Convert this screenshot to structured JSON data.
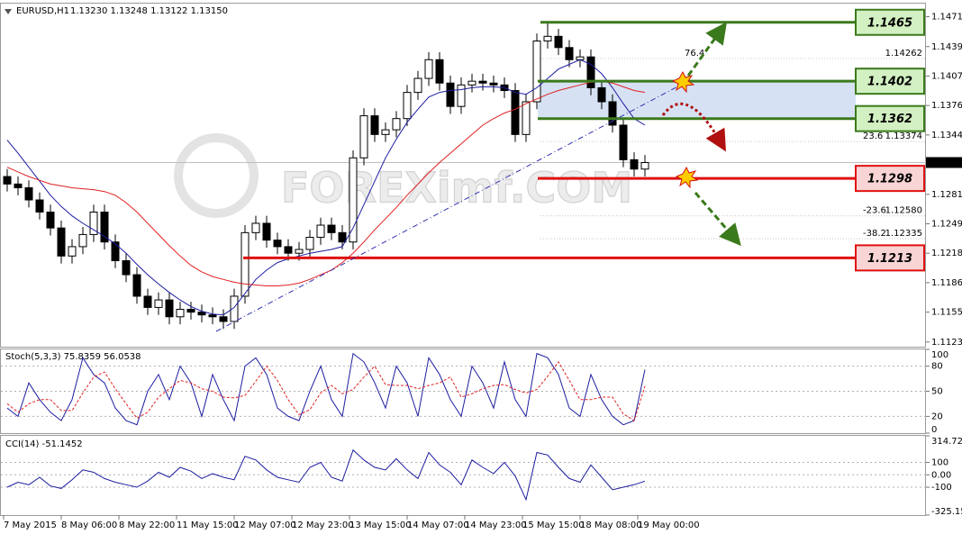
{
  "chart_data": [
    {
      "type": "candlestick",
      "title": "EURUSD,H1",
      "subtitle": "1.13230 1.13248 1.13122 1.13150",
      "watermark": "FOREXimf.COM",
      "x": [
        1,
        4,
        7,
        10,
        13,
        16,
        19,
        22,
        25,
        28,
        31,
        34,
        37,
        40,
        43,
        46,
        49,
        52,
        55,
        58,
        61,
        64,
        67,
        70,
        73,
        76,
        79,
        82,
        85,
        88,
        91,
        94,
        97,
        100,
        103,
        106,
        109,
        112,
        115,
        118,
        121,
        124,
        127,
        130,
        133,
        136,
        139,
        142,
        145,
        148,
        151,
        154,
        157,
        160,
        163,
        166,
        169,
        172,
        175,
        178
      ],
      "open": [
        1.13,
        1.1292,
        1.1288,
        1.1275,
        1.1262,
        1.1245,
        1.1215,
        1.1225,
        1.1238,
        1.1262,
        1.123,
        1.121,
        1.1195,
        1.1172,
        1.116,
        1.1168,
        1.115,
        1.1158,
        1.1155,
        1.1152,
        1.115,
        1.1145,
        1.1172,
        1.124,
        1.125,
        1.1232,
        1.1225,
        1.1218,
        1.1222,
        1.1235,
        1.1248,
        1.124,
        1.123,
        1.132,
        1.1365,
        1.1345,
        1.135,
        1.1362,
        1.139,
        1.1405,
        1.1425,
        1.14,
        1.1375,
        1.1398,
        1.1402,
        1.14,
        1.1398,
        1.1392,
        1.1345,
        1.138,
        1.1445,
        1.145,
        1.1438,
        1.1425,
        1.1428,
        1.1395,
        1.138,
        1.1355,
        1.1318,
        1.1308
      ],
      "high": [
        1.1308,
        1.13,
        1.1296,
        1.1283,
        1.127,
        1.1253,
        1.1233,
        1.1246,
        1.127,
        1.127,
        1.1238,
        1.1218,
        1.1203,
        1.118,
        1.1176,
        1.1176,
        1.1166,
        1.1166,
        1.1163,
        1.116,
        1.1158,
        1.118,
        1.1248,
        1.1258,
        1.1258,
        1.124,
        1.1233,
        1.123,
        1.1243,
        1.1256,
        1.1256,
        1.1248,
        1.1328,
        1.1373,
        1.1373,
        1.1358,
        1.137,
        1.1398,
        1.1413,
        1.1433,
        1.1433,
        1.1408,
        1.1406,
        1.141,
        1.141,
        1.1408,
        1.1406,
        1.14,
        1.1388,
        1.1453,
        1.1465,
        1.1458,
        1.1446,
        1.1436,
        1.1436,
        1.1403,
        1.1388,
        1.1363,
        1.1326,
        1.1323
      ],
      "low": [
        1.1284,
        1.128,
        1.1267,
        1.1254,
        1.1237,
        1.1207,
        1.1207,
        1.1217,
        1.123,
        1.1222,
        1.1202,
        1.1187,
        1.1164,
        1.1152,
        1.1152,
        1.1142,
        1.1142,
        1.1147,
        1.1144,
        1.1142,
        1.1137,
        1.1137,
        1.1164,
        1.1232,
        1.1224,
        1.1217,
        1.121,
        1.121,
        1.1214,
        1.1227,
        1.1232,
        1.1222,
        1.1222,
        1.1312,
        1.1337,
        1.1337,
        1.1342,
        1.1354,
        1.1382,
        1.1397,
        1.1392,
        1.1367,
        1.1367,
        1.139,
        1.1392,
        1.139,
        1.1384,
        1.1337,
        1.1337,
        1.1372,
        1.1437,
        1.143,
        1.1417,
        1.1417,
        1.1387,
        1.1372,
        1.1347,
        1.131,
        1.13,
        1.13
      ],
      "close": [
        1.1292,
        1.1288,
        1.1275,
        1.1262,
        1.1245,
        1.1215,
        1.1225,
        1.1238,
        1.1262,
        1.123,
        1.121,
        1.1195,
        1.1172,
        1.116,
        1.1168,
        1.115,
        1.1158,
        1.1155,
        1.1152,
        1.115,
        1.1145,
        1.1172,
        1.124,
        1.125,
        1.1232,
        1.1225,
        1.1218,
        1.1222,
        1.1235,
        1.1248,
        1.124,
        1.123,
        1.132,
        1.1365,
        1.1345,
        1.135,
        1.1362,
        1.139,
        1.1405,
        1.1425,
        1.14,
        1.1375,
        1.1398,
        1.1402,
        1.14,
        1.1398,
        1.1392,
        1.1345,
        1.138,
        1.1445,
        1.145,
        1.1438,
        1.1425,
        1.1428,
        1.1395,
        1.138,
        1.1355,
        1.1318,
        1.1308,
        1.1315
      ],
      "color_up": "#ffffff",
      "color_down": "#000000",
      "series": [
        {
          "color": "#1c1ca0",
          "values": [
            1.1339,
            1.1325,
            1.131,
            1.1295,
            1.128,
            1.1268,
            1.1258,
            1.125,
            1.1243,
            1.1236,
            1.1228,
            1.1218,
            1.1206,
            1.1195,
            1.1185,
            1.1176,
            1.1168,
            1.1161,
            1.1156,
            1.1153,
            1.1152,
            1.116,
            1.1175,
            1.119,
            1.12,
            1.1208,
            1.1212,
            1.1215,
            1.1218,
            1.122,
            1.1222,
            1.1225,
            1.1245,
            1.127,
            1.1295,
            1.132,
            1.134,
            1.1358,
            1.1372,
            1.1385,
            1.139,
            1.1392,
            1.1393,
            1.1395,
            1.1396,
            1.1396,
            1.1395,
            1.139,
            1.1388,
            1.1395,
            1.1405,
            1.1415,
            1.142,
            1.1425,
            1.142,
            1.141,
            1.1395,
            1.1378,
            1.1362,
            1.1355
          ]
        },
        {
          "color": "#e02020",
          "values": [
            1.131,
            1.1305,
            1.13,
            1.1296,
            1.1292,
            1.129,
            1.1288,
            1.1287,
            1.1286,
            1.1284,
            1.128,
            1.1272,
            1.1262,
            1.125,
            1.1238,
            1.1226,
            1.1215,
            1.1205,
            1.1198,
            1.1193,
            1.119,
            1.1187,
            1.1185,
            1.1184,
            1.1183,
            1.1183,
            1.1184,
            1.1186,
            1.119,
            1.1195,
            1.12,
            1.1208,
            1.1218,
            1.123,
            1.1243,
            1.1255,
            1.1267,
            1.128,
            1.1292,
            1.1304,
            1.1315,
            1.1325,
            1.1335,
            1.1345,
            1.1355,
            1.1362,
            1.1368,
            1.1372,
            1.1378,
            1.1383,
            1.1388,
            1.1392,
            1.1395,
            1.1398,
            1.1401,
            1.1402,
            1.14,
            1.1396,
            1.1392,
            1.139
          ]
        }
      ],
      "xlim": [
        -1,
        256
      ],
      "xticks": [
        {
          "value": 0,
          "label": "7 May 2015"
        },
        {
          "value": 16,
          "label": "8 May 06:00"
        },
        {
          "value": 32,
          "label": "8 May 22:00"
        },
        {
          "value": 48,
          "label": "11 May 15:00"
        },
        {
          "value": 64,
          "label": "12 May 07:00"
        },
        {
          "value": 80,
          "label": "12 May 23:00"
        },
        {
          "value": 96,
          "label": "13 May 15:00"
        },
        {
          "value": 112,
          "label": "14 May 07:00"
        },
        {
          "value": 128,
          "label": "14 May 23:00"
        },
        {
          "value": 144,
          "label": "15 May 15:00"
        },
        {
          "value": 160,
          "label": "18 May 08:00"
        },
        {
          "value": 176,
          "label": "19 May 00:00"
        }
      ],
      "ylim": [
        1.1118,
        1.1485
      ],
      "yticks": [
        {
          "value": 1.1471,
          "label": "1.14710"
        },
        {
          "value": 1.1439,
          "label": "1.14390"
        },
        1.14075,
        {
          "value": 1.1376,
          "label": "1.13760"
        },
        1.13445,
        {
          "value": 1.1281,
          "label": "1.12810"
        },
        1.12495,
        {
          "value": 1.1218,
          "label": "1.12180"
        },
        1.11865,
        {
          "value": 1.1155,
          "label": "1.11550"
        },
        {
          "value": 1.1123,
          "label": "1.11230"
        }
      ],
      "current_price": {
        "value": 1.1315,
        "label": "1.13150"
      },
      "levels": [
        {
          "value": 1.1465,
          "color": "#3b7a1c",
          "fill": "#d2f0c2"
        },
        {
          "value": 1.1402,
          "color": "#3b7a1c",
          "fill": "#d2f0c2"
        },
        {
          "value": 1.1362,
          "color": "#3b7a1c",
          "fill": "#d2f0c2"
        },
        {
          "value": 1.1298,
          "color": "#e01010",
          "fill": "#f8d4d4"
        },
        {
          "value": 1.1213,
          "color": "#e01010",
          "fill": "#f8d4d4"
        }
      ],
      "fibo": [
        {
          "level": 76.4,
          "price": 1.14262
        },
        {
          "level": 23.6,
          "price": 1.13374
        },
        {
          "level": -23.6,
          "price": {
            "value": 1.1258,
            "label": "1.12580"
          }
        },
        {
          "level": -38.2,
          "price": 1.12335
        }
      ]
    },
    {
      "type": "line",
      "title": "Stoch(5,3,3) 75.8359 56.0538",
      "grid": true,
      "series": [
        {
          "color": "#1c1ca0",
          "values": [
            30,
            20,
            60,
            40,
            25,
            15,
            40,
            90,
            70,
            60,
            30,
            15,
            10,
            50,
            70,
            40,
            80,
            60,
            20,
            70,
            40,
            15,
            80,
            90,
            70,
            30,
            20,
            15,
            50,
            80,
            40,
            20,
            95,
            85,
            60,
            30,
            80,
            60,
            20,
            90,
            70,
            40,
            20,
            80,
            60,
            30,
            85,
            40,
            20,
            95,
            90,
            70,
            30,
            20,
            70,
            40,
            20,
            10,
            15,
            75.8359
          ]
        },
        {
          "color": "#e02020",
          "dashed": true,
          "values": [
            35,
            25,
            35,
            40,
            40,
            27,
            27,
            48,
            67,
            73,
            53,
            35,
            18,
            25,
            43,
            53,
            63,
            60,
            53,
            50,
            43,
            42,
            45,
            62,
            80,
            63,
            40,
            22,
            28,
            48,
            57,
            47,
            52,
            67,
            80,
            58,
            57,
            57,
            53,
            57,
            60,
            67,
            43,
            47,
            53,
            57,
            58,
            52,
            48,
            52,
            68,
            85,
            63,
            40,
            40,
            43,
            43,
            23,
            15,
            56.0538
          ]
        }
      ],
      "ylim": [
        0,
        100
      ],
      "yticks": [
        0,
        20,
        50,
        80,
        100
      ]
    },
    {
      "type": "line",
      "title": "CCI(14) -51.1452",
      "grid": true,
      "series": [
        {
          "color": "#1c1ca0",
          "values": [
            -100,
            -60,
            -80,
            -20,
            -90,
            -110,
            -40,
            40,
            20,
            -30,
            -60,
            -80,
            -100,
            -50,
            20,
            -20,
            60,
            30,
            -30,
            10,
            -20,
            -40,
            150,
            120,
            40,
            -20,
            -40,
            -60,
            60,
            100,
            -20,
            -50,
            200,
            120,
            60,
            40,
            130,
            40,
            -30,
            180,
            80,
            20,
            -80,
            120,
            60,
            10,
            100,
            -10,
            -200,
            180,
            160,
            60,
            -30,
            -60,
            80,
            -20,
            -120,
            -100,
            -80,
            -51.1452
          ]
        }
      ],
      "ylim": [
        -325.1526,
        314.7289
      ],
      "yticks": [
        -325.1526,
        -100,
        {
          "value": 0,
          "label": "0.00"
        },
        100,
        314.7289
      ]
    }
  ]
}
